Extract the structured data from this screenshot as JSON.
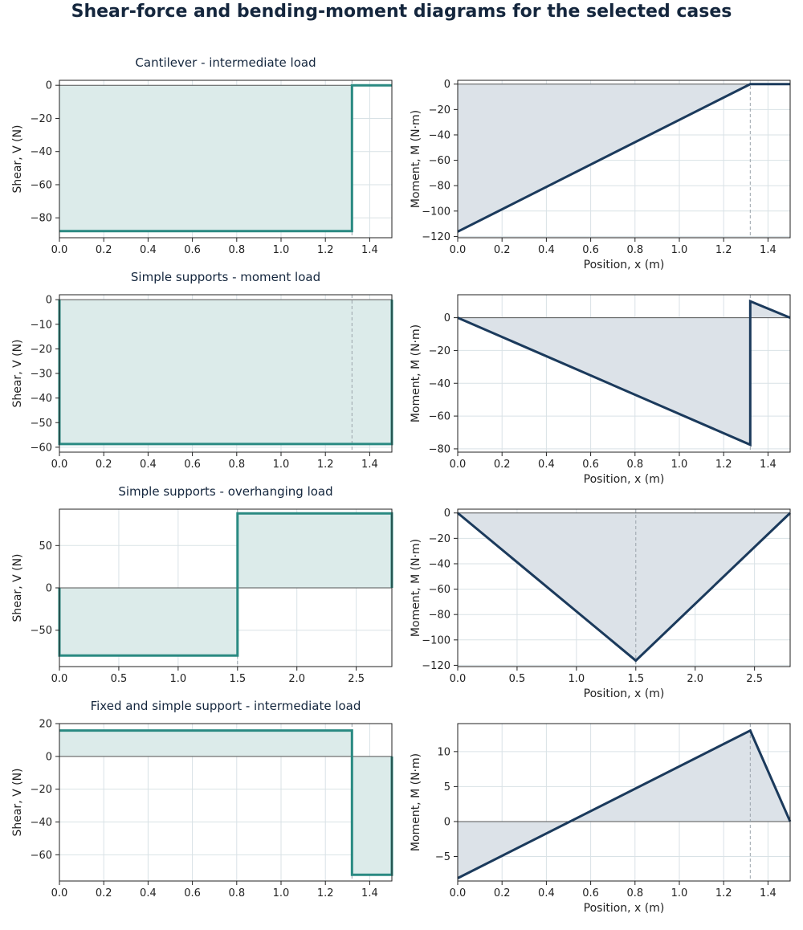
{
  "figure": {
    "title": "Shear-force and bending-moment diagrams for the selected cases"
  },
  "colors": {
    "shear_line": "#2a8a82",
    "shear_fill": "#dcebea",
    "moment_line": "#1b3a5c",
    "moment_fill": "#dce2e8",
    "grid": "#d9e2e6",
    "zero_line": "#555555",
    "marker_line": "#9aa3ab"
  },
  "chart_data": [
    {
      "type": "line",
      "id": "cantilever-shear",
      "title": "Cantilever - intermediate load",
      "xlabel": "",
      "ylabel": "Shear, V (N)",
      "xlim": [
        0,
        1.5
      ],
      "ylim": [
        -92,
        3
      ],
      "xticks": [
        0,
        0.2,
        0.4,
        0.6,
        0.8,
        1.0,
        1.2,
        1.4
      ],
      "xtick_labels": [
        "0.0",
        "0.2",
        "0.4",
        "0.6",
        "0.8",
        "1.0",
        "1.2",
        "1.4"
      ],
      "yticks": [
        0,
        -20,
        -40,
        -60,
        -80
      ],
      "ytick_labels": [
        "0",
        "−20",
        "−40",
        "−60",
        "−80"
      ],
      "marker_x": 1.32,
      "series": [
        {
          "x": [
            0,
            1.32,
            1.32,
            1.5
          ],
          "y": [
            -88,
            -88,
            0,
            0
          ]
        }
      ]
    },
    {
      "type": "line",
      "id": "cantilever-moment",
      "title": "",
      "xlabel": "Position, x (m)",
      "ylabel": "Moment, M (N·m)",
      "xlim": [
        0,
        1.5
      ],
      "ylim": [
        -121,
        3
      ],
      "xticks": [
        0,
        0.2,
        0.4,
        0.6,
        0.8,
        1.0,
        1.2,
        1.4
      ],
      "xtick_labels": [
        "0.0",
        "0.2",
        "0.4",
        "0.6",
        "0.8",
        "1.0",
        "1.2",
        "1.4"
      ],
      "yticks": [
        0,
        -20,
        -40,
        -60,
        -80,
        -100,
        -120
      ],
      "ytick_labels": [
        "0",
        "−20",
        "−40",
        "−60",
        "−80",
        "−100",
        "−120"
      ],
      "marker_x": 1.32,
      "series": [
        {
          "x": [
            0,
            1.32,
            1.5
          ],
          "y": [
            -116.2,
            0,
            0
          ]
        }
      ]
    },
    {
      "type": "line",
      "id": "moment-load-shear",
      "title": "Simple supports - moment load",
      "xlabel": "",
      "ylabel": "Shear, V (N)",
      "xlim": [
        0,
        1.5
      ],
      "ylim": [
        -62,
        2
      ],
      "xticks": [
        0,
        0.2,
        0.4,
        0.6,
        0.8,
        1.0,
        1.2,
        1.4
      ],
      "xtick_labels": [
        "0.0",
        "0.2",
        "0.4",
        "0.6",
        "0.8",
        "1.0",
        "1.2",
        "1.4"
      ],
      "yticks": [
        0,
        -10,
        -20,
        -30,
        -40,
        -50,
        -60
      ],
      "ytick_labels": [
        "0",
        "−10",
        "−20",
        "−30",
        "−40",
        "−50",
        "−60"
      ],
      "marker_x": 1.32,
      "series": [
        {
          "x": [
            0,
            0,
            1.5,
            1.5
          ],
          "y": [
            0,
            -58.7,
            -58.7,
            0
          ]
        }
      ]
    },
    {
      "type": "line",
      "id": "moment-load-moment",
      "title": "",
      "xlabel": "Position, x (m)",
      "ylabel": "Moment, M (N·m)",
      "xlim": [
        0,
        1.5
      ],
      "ylim": [
        -82,
        14
      ],
      "xticks": [
        0,
        0.2,
        0.4,
        0.6,
        0.8,
        1.0,
        1.2,
        1.4
      ],
      "xtick_labels": [
        "0.0",
        "0.2",
        "0.4",
        "0.6",
        "0.8",
        "1.0",
        "1.2",
        "1.4"
      ],
      "yticks": [
        0,
        -20,
        -40,
        -60,
        -80
      ],
      "ytick_labels": [
        "0",
        "−20",
        "−40",
        "−60",
        "−80"
      ],
      "marker_x": 1.32,
      "series": [
        {
          "x": [
            0,
            1.32,
            1.32,
            1.5
          ],
          "y": [
            0,
            -77.5,
            10,
            0
          ]
        }
      ]
    },
    {
      "type": "line",
      "id": "overhang-shear",
      "title": "Simple supports - overhanging load",
      "xlabel": "",
      "ylabel": "Shear, V (N)",
      "xlim": [
        0,
        2.8
      ],
      "ylim": [
        -93,
        93
      ],
      "xticks": [
        0,
        0.5,
        1.0,
        1.5,
        2.0,
        2.5
      ],
      "xtick_labels": [
        "0.0",
        "0.5",
        "1.0",
        "1.5",
        "2.0",
        "2.5"
      ],
      "yticks": [
        50,
        0,
        -50
      ],
      "ytick_labels": [
        "50",
        "0",
        "−50"
      ],
      "marker_x": 1.5,
      "series": [
        {
          "x": [
            0,
            0,
            1.5,
            1.5,
            2.8,
            2.8
          ],
          "y": [
            0,
            -80,
            -80,
            88,
            88,
            0
          ]
        }
      ]
    },
    {
      "type": "line",
      "id": "overhang-moment",
      "title": "",
      "xlabel": "Position, x (m)",
      "ylabel": "Moment, M (N·m)",
      "xlim": [
        0,
        2.8
      ],
      "ylim": [
        -121,
        3
      ],
      "xticks": [
        0,
        0.5,
        1.0,
        1.5,
        2.0,
        2.5
      ],
      "xtick_labels": [
        "0.0",
        "0.5",
        "1.0",
        "1.5",
        "2.0",
        "2.5"
      ],
      "yticks": [
        0,
        -20,
        -40,
        -60,
        -80,
        -100,
        -120
      ],
      "ytick_labels": [
        "0",
        "−20",
        "−40",
        "−60",
        "−80",
        "−100",
        "−120"
      ],
      "marker_x": 1.5,
      "series": [
        {
          "x": [
            0,
            1.5,
            2.8
          ],
          "y": [
            0,
            -116.3,
            0
          ]
        }
      ]
    },
    {
      "type": "line",
      "id": "fixed-simple-shear",
      "title": "Fixed and simple support - intermediate load",
      "xlabel": "",
      "ylabel": "Shear, V (N)",
      "xlim": [
        0,
        1.5
      ],
      "ylim": [
        -76,
        20
      ],
      "xticks": [
        0,
        0.2,
        0.4,
        0.6,
        0.8,
        1.0,
        1.2,
        1.4
      ],
      "xtick_labels": [
        "0.0",
        "0.2",
        "0.4",
        "0.6",
        "0.8",
        "1.0",
        "1.2",
        "1.4"
      ],
      "yticks": [
        20,
        0,
        -20,
        -40,
        -60
      ],
      "ytick_labels": [
        "20",
        "0",
        "−20",
        "−40",
        "−60"
      ],
      "marker_x": 1.32,
      "series": [
        {
          "x": [
            0,
            1.32,
            1.32,
            1.5,
            1.5
          ],
          "y": [
            15.8,
            15.8,
            -72.2,
            -72.2,
            0
          ]
        }
      ]
    },
    {
      "type": "line",
      "id": "fixed-simple-moment",
      "title": "",
      "xlabel": "Position, x (m)",
      "ylabel": "Moment, M (N·m)",
      "xlim": [
        0,
        1.5
      ],
      "ylim": [
        -8.5,
        14
      ],
      "xticks": [
        0,
        0.2,
        0.4,
        0.6,
        0.8,
        1.0,
        1.2,
        1.4
      ],
      "xtick_labels": [
        "0.0",
        "0.2",
        "0.4",
        "0.6",
        "0.8",
        "1.0",
        "1.2",
        "1.4"
      ],
      "yticks": [
        10,
        5,
        0,
        -5
      ],
      "ytick_labels": [
        "10",
        "5",
        "0",
        "−5"
      ],
      "marker_x": 1.32,
      "series": [
        {
          "x": [
            0,
            1.32,
            1.5
          ],
          "y": [
            -8.1,
            13,
            0
          ]
        }
      ]
    }
  ]
}
